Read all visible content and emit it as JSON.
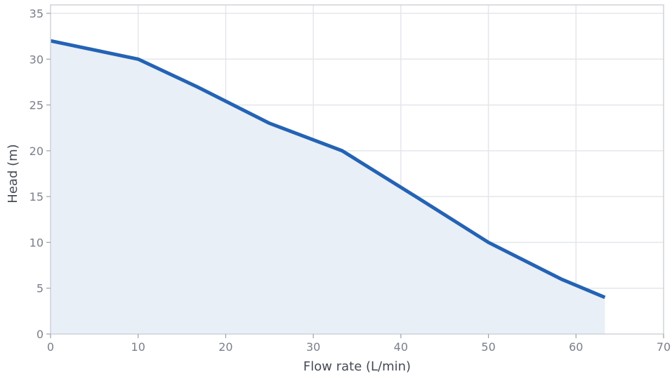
{
  "chart_data": {
    "type": "area",
    "title": "",
    "xlabel": "Flow rate (L/min)",
    "ylabel": "Head (m)",
    "xlim": [
      0,
      70
    ],
    "ylim": [
      0,
      35
    ],
    "xticks": [
      0,
      10,
      20,
      30,
      40,
      50,
      60,
      70
    ],
    "yticks": [
      0,
      5,
      10,
      15,
      20,
      25,
      30,
      35
    ],
    "grid": true,
    "legend": "none",
    "x": [
      0,
      10,
      16.7,
      25,
      33.3,
      41.7,
      50,
      58.3,
      63.3
    ],
    "series": [
      {
        "values": [
          32,
          30,
          27,
          23,
          20,
          15,
          10,
          6,
          4
        ],
        "color": "#2463b4",
        "fill_color": "#e9eff7"
      }
    ]
  }
}
